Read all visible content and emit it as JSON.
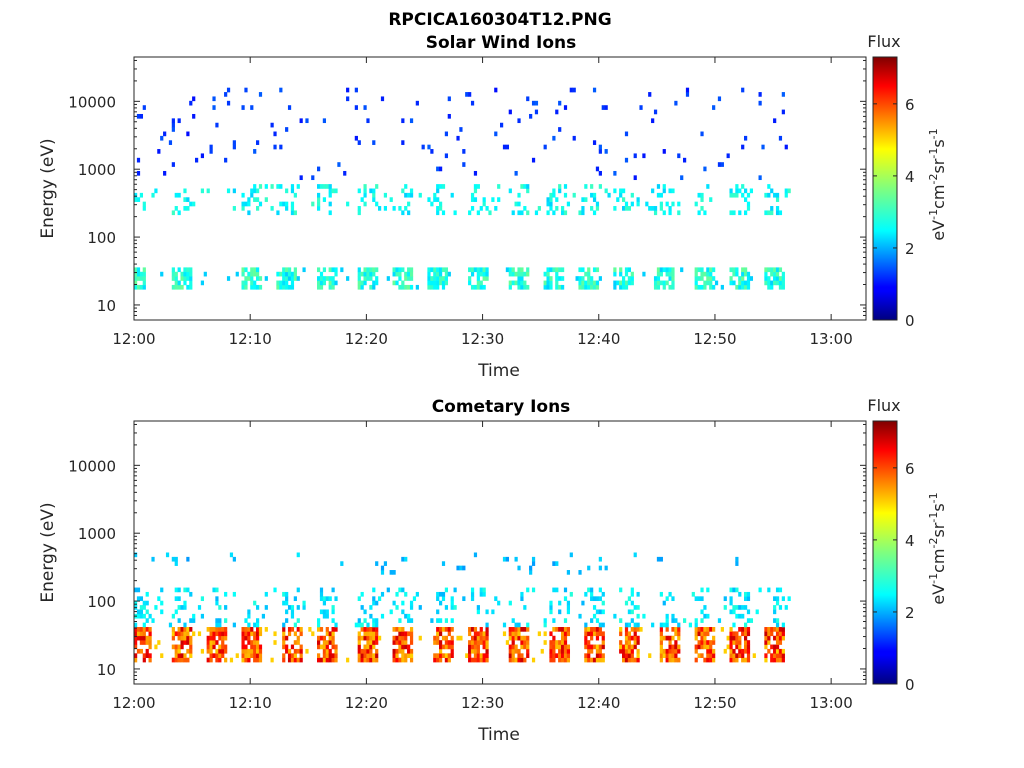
{
  "figure_title": "RPCICA160304T12.PNG",
  "colorbar": {
    "title": "Flux",
    "label": "eV-1cm-2sr-1s-1",
    "label_parts": [
      {
        "text": "eV",
        "sup": false
      },
      {
        "text": "-1",
        "sup": true
      },
      {
        "text": "cm",
        "sup": false
      },
      {
        "text": "-2",
        "sup": true
      },
      {
        "text": "sr",
        "sup": false
      },
      {
        "text": "-1",
        "sup": true
      },
      {
        "text": "s",
        "sup": false
      },
      {
        "text": "-1",
        "sup": true
      }
    ],
    "range": [
      0,
      7.3
    ],
    "ticks": [
      0,
      2,
      4,
      6
    ],
    "tick_labels": [
      "0",
      "2",
      "4",
      "6"
    ],
    "colormap": "jet"
  },
  "chart_data": [
    {
      "type": "heatmap",
      "title": "Solar Wind Ions",
      "xlabel": "Time",
      "ylabel": "Energy (eV)",
      "y_scale": "log",
      "ylim": [
        6,
        45000
      ],
      "xlim": [
        "12:00",
        "13:03"
      ],
      "x_ticks": [
        "12:00",
        "12:10",
        "12:20",
        "12:30",
        "12:40",
        "12:50",
        "13:00"
      ],
      "y_ticks": [
        10,
        100,
        1000,
        10000
      ],
      "y_tick_labels": [
        "10",
        "100",
        "1000",
        "10000"
      ],
      "data_end": "12:56.5",
      "dominant_bands": [
        {
          "energy_range_eV": [
            18,
            35
          ],
          "flux": 3.0,
          "note": "periodic bursts every ~3 min"
        },
        {
          "energy_range_eV": [
            200,
            600
          ],
          "flux": 2.8,
          "note": "scattered patches"
        },
        {
          "energy_range_eV": [
            700,
            15000
          ],
          "flux": 1.3,
          "note": "sparse isolated points"
        }
      ],
      "burst_times": [
        "12:00",
        "12:04",
        "12:10",
        "12:13",
        "12:16.5",
        "12:20",
        "12:23",
        "12:26",
        "12:29.5",
        "12:33",
        "12:36",
        "12:39",
        "12:42",
        "12:45.5",
        "12:49",
        "12:52",
        "12:55"
      ]
    },
    {
      "type": "heatmap",
      "title": "Cometary Ions",
      "xlabel": "Time",
      "ylabel": "Energy (eV)",
      "y_scale": "log",
      "ylim": [
        6,
        45000
      ],
      "xlim": [
        "12:00",
        "13:03"
      ],
      "x_ticks": [
        "12:00",
        "12:10",
        "12:20",
        "12:30",
        "12:40",
        "12:50",
        "13:00"
      ],
      "y_ticks": [
        10,
        100,
        1000,
        10000
      ],
      "y_tick_labels": [
        "10",
        "100",
        "1000",
        "10000"
      ],
      "data_end": "12:56.5",
      "dominant_bands": [
        {
          "energy_range_eV": [
            12,
            40
          ],
          "flux": 5.5,
          "peak_flux": 6.8,
          "note": "strong periodic bursts every ~3 min"
        },
        {
          "energy_range_eV": [
            40,
            150
          ],
          "flux": 2.6,
          "note": "vertical streaks above bursts"
        },
        {
          "energy_range_eV": [
            250,
            500
          ],
          "flux": 2.3,
          "note": "occasional patches"
        }
      ],
      "burst_times": [
        "12:00.5",
        "12:04",
        "12:07",
        "12:10",
        "12:13.5",
        "12:16.5",
        "12:20",
        "12:23",
        "12:26.5",
        "12:29.5",
        "12:33",
        "12:36.5",
        "12:39.5",
        "12:42.5",
        "12:46",
        "12:49",
        "12:52",
        "12:55"
      ]
    }
  ]
}
